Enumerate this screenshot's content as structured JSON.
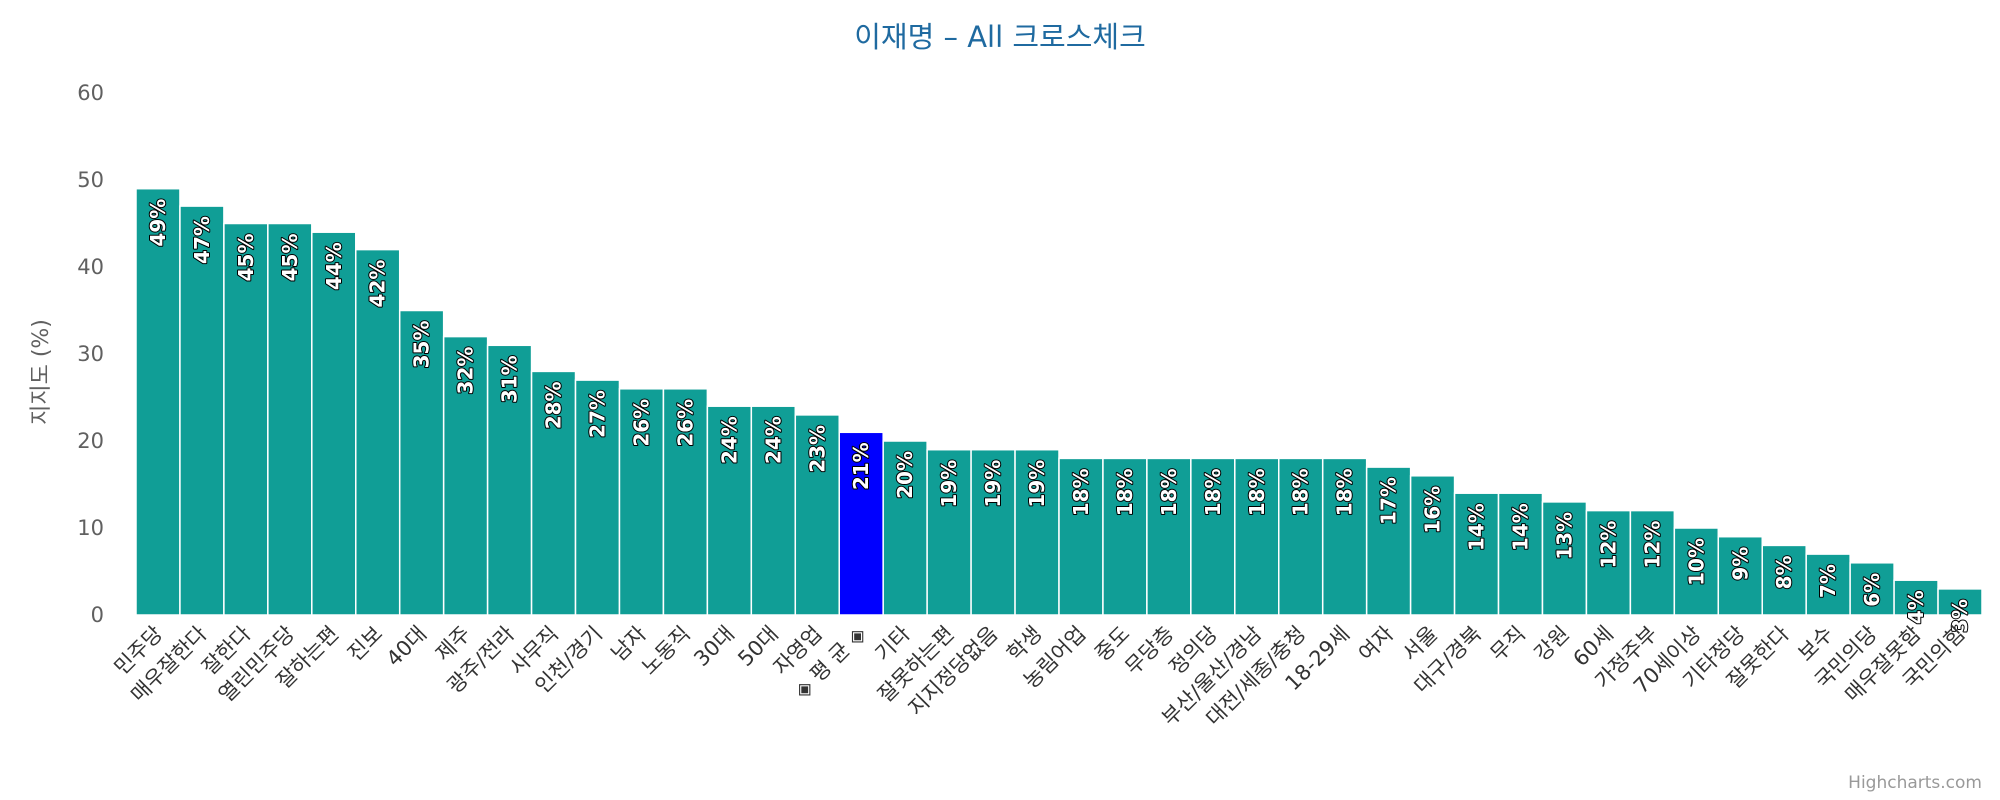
{
  "chart_data": {
    "type": "bar",
    "title": "이재명 – All 크로스체크",
    "ylabel": "지지도 (%)",
    "ylim": [
      0,
      60
    ],
    "yticks": [
      0,
      10,
      20,
      30,
      40,
      50,
      60
    ],
    "grid": false,
    "legend": "none",
    "bar_color": "#109e96",
    "highlight_color": "#0000ff",
    "highlight_category": "◈ 평 균 ◈",
    "label_suffix": "%",
    "categories": [
      "민주당",
      "매우잘한다",
      "잘한다",
      "열린민주당",
      "잘하는편",
      "진보",
      "40대",
      "제주",
      "광주/전라",
      "사무직",
      "인천/경기",
      "남자",
      "노동직",
      "30대",
      "50대",
      "자영업",
      "◈ 평 균 ◈",
      "기타",
      "잘못하는편",
      "지지정당없음",
      "학생",
      "농림어업",
      "중도",
      "무당층",
      "정의당",
      "부산/울산/경남",
      "대전/세종/충청",
      "18-29세",
      "여자",
      "서울",
      "대구/경북",
      "무직",
      "강원",
      "60세",
      "가정주부",
      "70세이상",
      "기타정당",
      "잘못한다",
      "보수",
      "국민의당",
      "매우잘못함",
      "국민의힘"
    ],
    "values": [
      49,
      47,
      45,
      45,
      44,
      42,
      35,
      32,
      31,
      28,
      27,
      26,
      26,
      24,
      24,
      23,
      21,
      20,
      19,
      19,
      19,
      18,
      18,
      18,
      18,
      18,
      18,
      18,
      17,
      16,
      14,
      14,
      13,
      12,
      12,
      10,
      9,
      8,
      7,
      6,
      4,
      3
    ]
  },
  "credits": "Highcharts.com"
}
